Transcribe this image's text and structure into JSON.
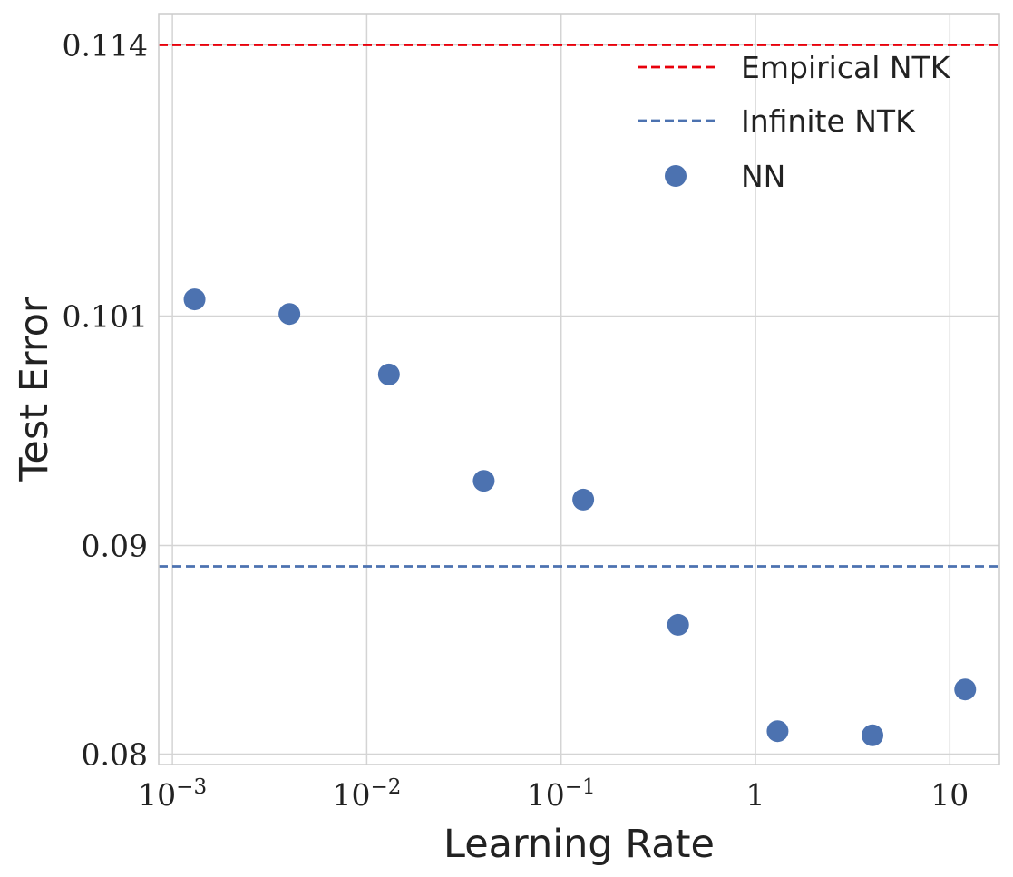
{
  "chart_data": {
    "type": "scatter",
    "title": "",
    "xlabel": "Learning Rate",
    "ylabel": "Test Error",
    "xscale": "log",
    "xlim": [
      0.00085,
      18
    ],
    "ylim": [
      0.0795,
      0.1155
    ],
    "grid": true,
    "x_ticks": [
      {
        "value": 0.001,
        "base": "10",
        "exp": "−3"
      },
      {
        "value": 0.01,
        "base": "10",
        "exp": "−2"
      },
      {
        "value": 0.1,
        "base": "10",
        "exp": "−1"
      },
      {
        "value": 1,
        "base": "1",
        "exp": ""
      },
      {
        "value": 10,
        "base": "10",
        "exp": ""
      }
    ],
    "y_ticks": [
      {
        "value": 0.08,
        "label": "0.08"
      },
      {
        "value": 0.09,
        "label": "0.09"
      },
      {
        "value": 0.101,
        "label": "0.101"
      },
      {
        "value": 0.114,
        "label": "0.114"
      }
    ],
    "hlines": [
      {
        "name": "Empirical NTK",
        "y": 0.114,
        "color": "#e8000b",
        "style": "dashed"
      },
      {
        "name": "Infinite NTK",
        "y": 0.089,
        "color": "#4c72b0",
        "style": "dashed"
      }
    ],
    "series": [
      {
        "name": "NN",
        "color": "#4c72b0",
        "x": [
          0.0013,
          0.004,
          0.013,
          0.04,
          0.13,
          0.4,
          1.3,
          4,
          12
        ],
        "y": [
          0.1018,
          0.1011,
          0.0982,
          0.0931,
          0.0922,
          0.0862,
          0.0811,
          0.0809,
          0.0831
        ]
      }
    ],
    "legend": {
      "position": "top-right",
      "entries": [
        {
          "label": "Empirical NTK",
          "kind": "line",
          "color": "#e8000b"
        },
        {
          "label": "Infinite NTK",
          "kind": "line",
          "color": "#4c72b0"
        },
        {
          "label": "NN",
          "kind": "marker",
          "color": "#4c72b0"
        }
      ]
    }
  }
}
